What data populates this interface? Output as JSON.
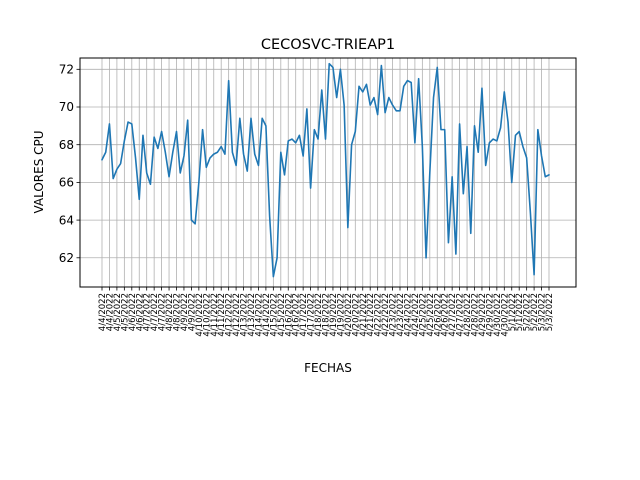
{
  "chart_data": {
    "type": "line",
    "title": "CECOSVC-TRIEAP1",
    "xlabel": "FECHAS",
    "ylabel": "VALORES CPU",
    "ylim": [
      60.45,
      72.6
    ],
    "yticks": [
      62,
      64,
      66,
      68,
      70,
      72
    ],
    "grid": true,
    "legend": "none",
    "line_color": "#1f77b4",
    "x_tick_labels": [
      "4/4/2022",
      "4/4/2022",
      "4/5/2022",
      "4/5/2022",
      "4/6/2022",
      "4/6/2022",
      "4/7/2022",
      "4/7/2022",
      "4/7/2022",
      "4/8/2022",
      "4/8/2022",
      "4/9/2022",
      "4/9/2022",
      "4/10/2022",
      "4/10/2022",
      "4/11/2022",
      "4/11/2022",
      "4/12/2022",
      "4/12/2022",
      "4/13/2022",
      "4/13/2022",
      "4/14/2022",
      "4/14/2022",
      "4/15/2022",
      "4/15/2022",
      "4/16/2022",
      "4/16/2022",
      "4/17/2022",
      "4/17/2022",
      "4/18/2022",
      "4/18/2022",
      "4/19/2022",
      "4/19/2022",
      "4/20/2022",
      "4/20/2022",
      "4/21/2022",
      "4/21/2022",
      "4/22/2022",
      "4/22/2022",
      "4/23/2022",
      "4/23/2022",
      "4/24/2022",
      "4/24/2022",
      "4/25/2022",
      "4/25/2022",
      "4/26/2022",
      "4/26/2022",
      "4/27/2022",
      "4/27/2022",
      "4/28/2022",
      "4/28/2022",
      "4/29/2022",
      "4/29/2022",
      "4/30/2022",
      "4/30/2022",
      "5/1/2022",
      "5/1/2022",
      "5/2/2022",
      "5/2/2022",
      "5/3/2022",
      "5/3/2022"
    ],
    "series": [
      {
        "values": [
          67.2,
          67.6,
          69.1,
          66.2,
          66.7,
          67.0,
          68.2,
          69.2,
          69.1,
          67.3,
          65.1,
          68.5,
          66.5,
          65.9,
          68.4,
          67.8,
          68.7,
          67.6,
          66.3,
          67.6,
          68.7,
          66.5,
          67.4,
          69.3,
          64.0,
          63.8,
          66.0,
          68.8,
          66.8,
          67.3,
          67.5,
          67.6,
          67.9,
          67.5,
          71.4,
          67.6,
          66.9,
          69.4,
          67.5,
          66.6,
          69.4,
          67.5,
          66.9,
          69.4,
          69.0,
          64.2,
          61.0,
          62.0,
          67.6,
          66.4,
          68.2,
          68.3,
          68.1,
          68.5,
          67.4,
          69.9,
          65.7,
          68.8,
          68.3,
          70.9,
          68.3,
          72.3,
          72.1,
          70.5,
          72.0,
          70.1,
          63.6,
          68.0,
          68.7,
          71.1,
          70.8,
          71.2,
          70.1,
          70.5,
          69.6,
          72.2,
          69.7,
          70.5,
          70.1,
          69.8,
          69.8,
          71.1,
          71.4,
          71.3,
          68.1,
          71.5,
          67.9,
          62.0,
          66.5,
          70.5,
          72.1,
          68.8,
          68.8,
          62.8,
          66.3,
          62.2,
          69.1,
          65.4,
          67.9,
          63.3,
          69.0,
          67.6,
          71.0,
          66.9,
          68.1,
          68.3,
          68.2,
          68.9,
          70.8,
          69.2,
          66.0,
          68.5,
          68.7,
          67.9,
          67.3,
          64.4,
          61.1,
          68.8,
          67.4,
          66.3,
          66.4
        ]
      }
    ]
  }
}
